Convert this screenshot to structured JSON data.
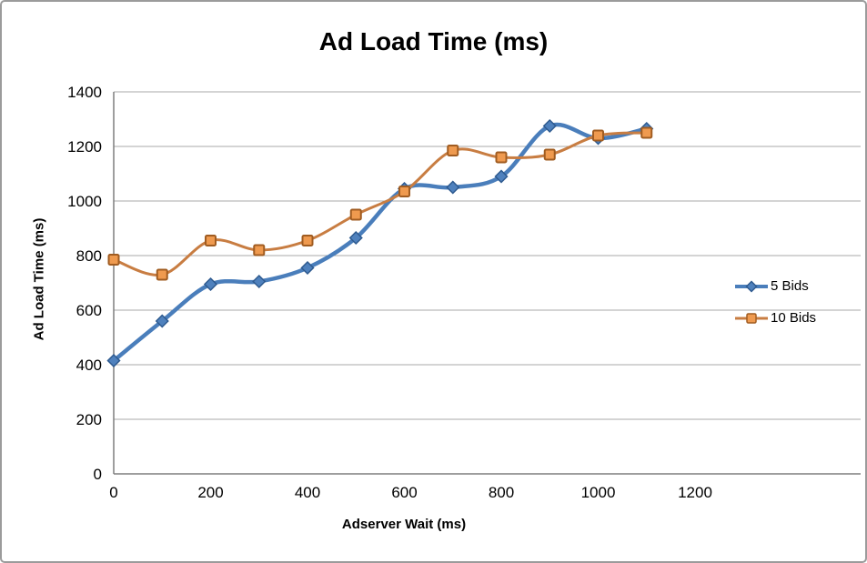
{
  "window": {
    "background": "#ffffff",
    "border_color": "#9b9b9b"
  },
  "chart_data": {
    "type": "line",
    "title": "Ad Load Time (ms)",
    "xlabel": "Adserver Wait (ms)",
    "ylabel": "Ad Load Time (ms)",
    "x": [
      0,
      100,
      200,
      300,
      400,
      500,
      600,
      700,
      800,
      900,
      1000,
      1100
    ],
    "series": [
      {
        "name": "5 Bids",
        "marker": "diamond",
        "line_color": "#4a7ebb",
        "marker_fill": "#4f81bd",
        "marker_stroke": "#2e5a8f",
        "values": [
          415,
          560,
          695,
          705,
          755,
          865,
          1045,
          1050,
          1090,
          1275,
          1230,
          1265
        ]
      },
      {
        "name": "10 Bids",
        "marker": "square",
        "line_color": "#c87d42",
        "marker_fill": "#ef9a4f",
        "marker_stroke": "#a05c21",
        "values": [
          785,
          730,
          855,
          820,
          855,
          950,
          1035,
          1185,
          1160,
          1170,
          1240,
          1250
        ]
      }
    ],
    "xlim": [
      0,
      1200
    ],
    "ylim": [
      0,
      1400
    ],
    "xticks": [
      0,
      200,
      400,
      600,
      800,
      1000,
      1200
    ],
    "yticks": [
      0,
      200,
      400,
      600,
      800,
      1000,
      1200,
      1400
    ],
    "grid": true,
    "grid_color": "#a8a8a8",
    "axis_color": "#7f7f7f",
    "smooth_lines": true,
    "legend_position": "right"
  }
}
